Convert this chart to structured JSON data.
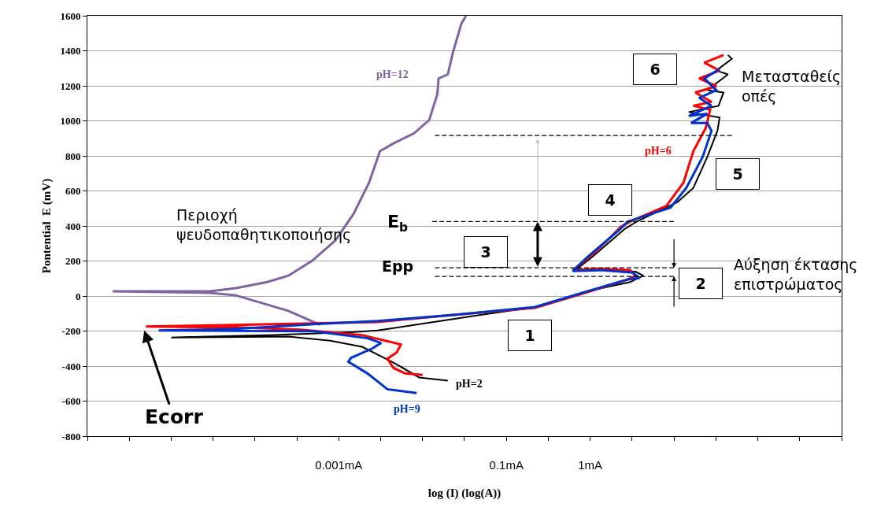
{
  "chart_data": {
    "type": "line",
    "xlabel": "log (I) (log(A))",
    "ylabel": "Pontential  E (mV)",
    "grid": "y",
    "legend": false,
    "log": "x",
    "xlim": [
      1e-06,
      1000
    ],
    "ylim": [
      -800,
      1600
    ],
    "xticks": [
      {
        "value": 1e-06,
        "label": null
      },
      {
        "value": 3.16e-06,
        "label": null
      },
      {
        "value": 1e-05,
        "label": null
      },
      {
        "value": 3.16e-05,
        "label": null
      },
      {
        "value": 0.0001,
        "label": null
      },
      {
        "value": 0.000316,
        "label": null
      },
      {
        "value": 0.001,
        "label": "0.001mA"
      },
      {
        "value": 0.00316,
        "label": null
      },
      {
        "value": 0.01,
        "label": null
      },
      {
        "value": 0.0316,
        "label": null
      },
      {
        "value": 0.1,
        "label": "0.1mA"
      },
      {
        "value": 0.316,
        "label": null
      },
      {
        "value": 1,
        "label": "1mA"
      },
      {
        "value": 3.16,
        "label": null
      },
      {
        "value": 10,
        "label": null
      },
      {
        "value": 31.6,
        "label": null
      },
      {
        "value": 100,
        "label": null
      },
      {
        "value": 316,
        "label": null
      },
      {
        "value": 1000,
        "label": null
      }
    ],
    "yticks": [
      -800,
      -600,
      -400,
      -200,
      0,
      200,
      400,
      600,
      800,
      1000,
      1200,
      1400,
      1600
    ],
    "series": [
      {
        "name": "pH=12",
        "color": "#8064a2",
        "line_style": "solid",
        "x": [
          0.0006,
          0.00025,
          5.9e-05,
          2.9e-05,
          2e-06,
          2.9e-05,
          5.9e-05,
          0.00014,
          0.00025,
          0.00048,
          0.00091,
          0.0015,
          0.0023,
          0.0031,
          0.0045,
          0.0079,
          0.012,
          0.015,
          0.0155,
          0.02,
          0.023,
          0.029,
          0.033
        ],
        "values": [
          -165,
          -85,
          4,
          18,
          27,
          27,
          45,
          80,
          116,
          201,
          317,
          469,
          648,
          827,
          871,
          929,
          1005,
          1153,
          1242,
          1265,
          1390,
          1555,
          1600
        ]
      },
      {
        "name": "pH=2",
        "color": "#000000",
        "line_style": "solid",
        "x": [
          44,
          49,
          32,
          44,
          25,
          39,
          34,
          15,
          35,
          33,
          25,
          17,
          11,
          3.6,
          2.6,
          1.0,
          0.68,
          1.4,
          3.5,
          4.3,
          3.0,
          0.93,
          0.22,
          0.051,
          0.0029,
          0.0015,
          0.00017,
          1e-05,
          0.00025,
          0.00079,
          0.0019,
          0.0045,
          0.0091,
          0.02
        ],
        "values": [
          1376,
          1354,
          1287,
          1265,
          1175,
          1162,
          1086,
          1050,
          1019,
          943,
          795,
          617,
          536,
          425,
          384,
          214,
          152,
          156,
          138,
          116,
          80,
          27,
          -63,
          -107,
          -197,
          -206,
          -223,
          -237,
          -232,
          -255,
          -290,
          -380,
          -465,
          -483
        ]
      },
      {
        "name": "pH=6",
        "color": "#ff0000",
        "line_style": "solid",
        "x": [
          39,
          23,
          35,
          20,
          32,
          18,
          28,
          17,
          27,
          24,
          17,
          13,
          8.1,
          3.0,
          2.3,
          1.6,
          0.93,
          0.62,
          1.3,
          3.0,
          3.5,
          2.8,
          0.93,
          0.22,
          0.025,
          0.0029,
          5.9e-05,
          5e-06,
          5.9e-05,
          0.00035,
          0.0019,
          0.0055,
          0.0049,
          0.0038,
          0.0045,
          0.0062,
          0.01
        ],
        "values": [
          1376,
          1332,
          1287,
          1242,
          1198,
          1162,
          1108,
          1086,
          1064,
          961,
          827,
          648,
          514,
          425,
          393,
          317,
          214,
          147,
          156,
          147,
          116,
          94,
          22,
          -67,
          -107,
          -148,
          -165,
          -174,
          -179,
          -192,
          -223,
          -277,
          -322,
          -358,
          -411,
          -442,
          -451
        ]
      },
      {
        "name": "pH=9",
        "color": "#0033cc",
        "line_style": "solid",
        "x": [
          35,
          23,
          32,
          20,
          28,
          15,
          25,
          16,
          25,
          28,
          22,
          14,
          9.1,
          2.8,
          2.3,
          0.93,
          0.62,
          1.4,
          3.2,
          3.9,
          2.8,
          0.93,
          0.22,
          0.025,
          0.0029,
          0.00051,
          5.9e-05,
          7.1e-06,
          0.00051,
          0.0022,
          0.0032,
          0.0025,
          0.0014,
          0.0013,
          0.0022,
          0.0038,
          0.0085
        ],
        "values": [
          1296,
          1242,
          1175,
          1131,
          1086,
          1028,
          1041,
          988,
          988,
          943,
          795,
          617,
          505,
          425,
          384,
          223,
          143,
          147,
          134,
          103,
          94,
          27,
          -63,
          -107,
          -143,
          -161,
          -188,
          -197,
          -201,
          -241,
          -268,
          -300,
          -353,
          -375,
          -442,
          -532,
          -554
        ]
      },
      {
        "color": "#000000",
        "line_style": "dashed",
        "x": [
          0.014,
          49
        ],
        "values": [
          916,
          916
        ]
      },
      {
        "color": "#000000",
        "line_style": "dashed",
        "x": [
          0.013,
          10
        ],
        "values": [
          425,
          425
        ]
      },
      {
        "color": "#000000",
        "line_style": "dashed",
        "x": [
          0.014,
          10
        ],
        "values": [
          161,
          161
        ]
      },
      {
        "color": "#000000",
        "line_style": "dashed",
        "x": [
          0.014,
          10
        ],
        "values": [
          112,
          112
        ]
      }
    ],
    "annotations": [
      "Περιοχή\nψευδοπαθητικοποιήσης",
      "E$_{b}$",
      "Epp",
      {
        "text": "Ecorr",
        "x": 4.7e-06,
        "y": -188
      },
      "1",
      "2",
      "3",
      "4",
      "5",
      "6",
      "Μετασταθείς\nοπές",
      "Αύξηση έκτασης\nεπιστρώματος"
    ]
  }
}
